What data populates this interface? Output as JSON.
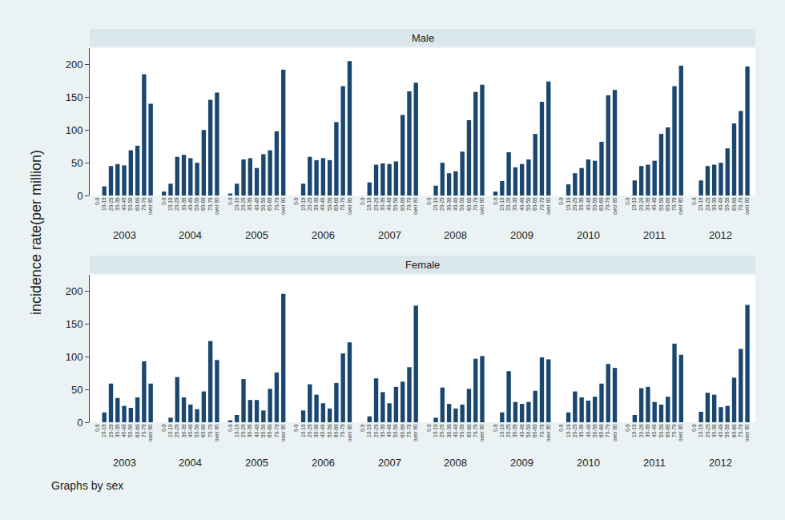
{
  "chart_data": [
    {
      "type": "bar",
      "title": "Male",
      "color": "#1a476f",
      "grid": false,
      "ylim": [
        0,
        225
      ],
      "yticks": [
        0,
        50,
        100,
        150,
        200
      ],
      "categories": [
        "0-9",
        "10-19",
        "20-29",
        "30-39",
        "40-49",
        "50-59",
        "60-69",
        "70-79",
        "over 80"
      ],
      "groups": [
        {
          "label": "2003",
          "values": [
            0,
            14,
            45,
            48,
            46,
            69,
            76,
            185,
            140
          ]
        },
        {
          "label": "2004",
          "values": [
            6,
            18,
            59,
            62,
            57,
            50,
            100,
            146,
            157
          ]
        },
        {
          "label": "2005",
          "values": [
            3,
            18,
            55,
            57,
            42,
            63,
            69,
            98,
            192
          ]
        },
        {
          "label": "2006",
          "values": [
            0,
            18,
            59,
            54,
            57,
            54,
            112,
            167,
            205
          ]
        },
        {
          "label": "2007",
          "values": [
            0,
            20,
            47,
            49,
            48,
            52,
            123,
            159,
            172
          ]
        },
        {
          "label": "2008",
          "values": [
            0,
            15,
            50,
            34,
            37,
            67,
            115,
            158,
            169
          ]
        },
        {
          "label": "2009",
          "values": [
            6,
            22,
            66,
            43,
            48,
            55,
            94,
            143,
            174
          ]
        },
        {
          "label": "2010",
          "values": [
            0,
            17,
            34,
            42,
            55,
            53,
            82,
            153,
            161
          ]
        },
        {
          "label": "2011",
          "values": [
            0,
            23,
            45,
            47,
            53,
            94,
            104,
            167,
            198
          ]
        },
        {
          "label": "2012",
          "values": [
            0,
            23,
            45,
            47,
            50,
            72,
            110,
            129,
            197
          ]
        }
      ]
    },
    {
      "type": "bar",
      "title": "Female",
      "color": "#1a476f",
      "grid": false,
      "ylim": [
        0,
        225
      ],
      "yticks": [
        0,
        50,
        100,
        150,
        200
      ],
      "categories": [
        "0-9",
        "10-19",
        "20-29",
        "30-39",
        "40-49",
        "50-59",
        "60-69",
        "70-79",
        "over 80"
      ],
      "groups": [
        {
          "label": "2003",
          "values": [
            0,
            15,
            59,
            37,
            25,
            22,
            38,
            93,
            59
          ]
        },
        {
          "label": "2004",
          "values": [
            0,
            7,
            69,
            38,
            27,
            20,
            47,
            124,
            95
          ]
        },
        {
          "label": "2005",
          "values": [
            3,
            11,
            66,
            34,
            34,
            18,
            51,
            76,
            196
          ]
        },
        {
          "label": "2006",
          "values": [
            0,
            18,
            58,
            42,
            29,
            21,
            60,
            105,
            122
          ]
        },
        {
          "label": "2007",
          "values": [
            0,
            9,
            67,
            46,
            29,
            54,
            62,
            84,
            178
          ]
        },
        {
          "label": "2008",
          "values": [
            0,
            7,
            53,
            28,
            21,
            27,
            51,
            97,
            101
          ]
        },
        {
          "label": "2009",
          "values": [
            0,
            15,
            78,
            31,
            28,
            31,
            48,
            99,
            96
          ]
        },
        {
          "label": "2010",
          "values": [
            0,
            15,
            47,
            38,
            33,
            39,
            59,
            89,
            83
          ]
        },
        {
          "label": "2011",
          "values": [
            0,
            11,
            52,
            54,
            31,
            27,
            39,
            120,
            103
          ]
        },
        {
          "label": "2012",
          "values": [
            0,
            16,
            45,
            42,
            23,
            25,
            68,
            112,
            179
          ]
        }
      ]
    }
  ],
  "ylabel": "incidence rate(per million)",
  "note": "Graphs by sex"
}
